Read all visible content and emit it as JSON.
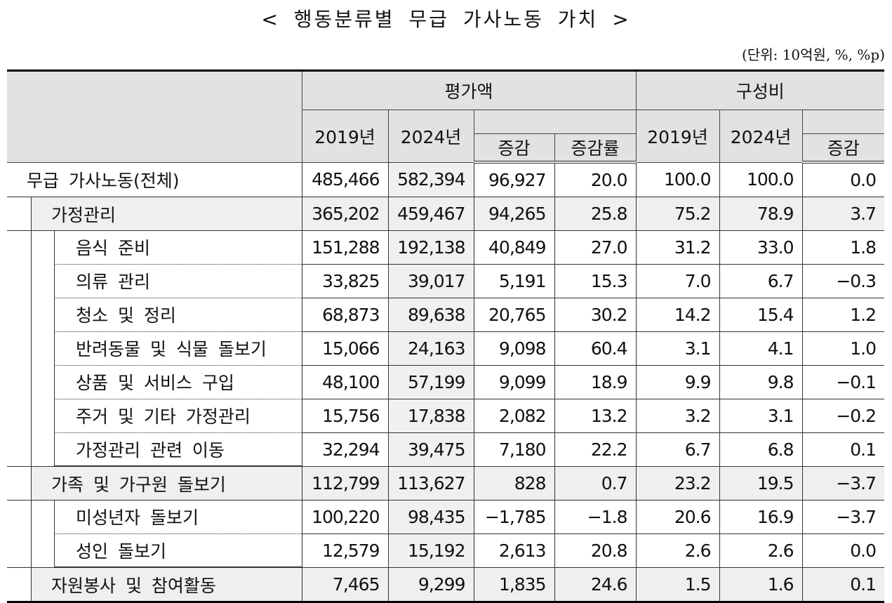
{
  "title": "< 행동분류별 무급 가사노동 가치 >",
  "unit": "(단위: 10억원, %, %p)",
  "headers": {
    "valuation": "평가액",
    "composition": "구성비",
    "y2019": "2019년",
    "y2024": "2024년",
    "change": "증감",
    "change_rate": "증감률"
  },
  "rows": [
    {
      "label": "무급 가사노동(전체)",
      "level": "total",
      "values": [
        "485,466",
        "582,394",
        "96,927",
        "20.0",
        "100.0",
        "100.0",
        "0.0"
      ]
    },
    {
      "label": "가정관리",
      "level": "group",
      "values": [
        "365,202",
        "459,467",
        "94,265",
        "25.8",
        "75.2",
        "78.9",
        "3.7"
      ]
    },
    {
      "label": "음식 준비",
      "level": "leaf",
      "values": [
        "151,288",
        "192,138",
        "40,849",
        "27.0",
        "31.2",
        "33.0",
        "1.8"
      ]
    },
    {
      "label": "의류 관리",
      "level": "leaf",
      "values": [
        "33,825",
        "39,017",
        "5,191",
        "15.3",
        "7.0",
        "6.7",
        "−0.3"
      ]
    },
    {
      "label": "청소 및 정리",
      "level": "leaf",
      "values": [
        "68,873",
        "89,638",
        "20,765",
        "30.2",
        "14.2",
        "15.4",
        "1.2"
      ]
    },
    {
      "label": "반려동물 및 식물 돌보기",
      "level": "leaf",
      "values": [
        "15,066",
        "24,163",
        "9,098",
        "60.4",
        "3.1",
        "4.1",
        "1.0"
      ]
    },
    {
      "label": "상품 및 서비스 구입",
      "level": "leaf",
      "values": [
        "48,100",
        "57,199",
        "9,099",
        "18.9",
        "9.9",
        "9.8",
        "−0.1"
      ]
    },
    {
      "label": "주거 및 기타 가정관리",
      "level": "leaf",
      "values": [
        "15,756",
        "17,838",
        "2,082",
        "13.2",
        "3.2",
        "3.1",
        "−0.2"
      ]
    },
    {
      "label": "가정관리 관련 이동",
      "level": "leaf",
      "values": [
        "32,294",
        "39,475",
        "7,180",
        "22.2",
        "6.7",
        "6.8",
        "0.1"
      ]
    },
    {
      "label": "가족 및 가구원 돌보기",
      "level": "group",
      "values": [
        "112,799",
        "113,627",
        "828",
        "0.7",
        "23.2",
        "19.5",
        "−3.7"
      ]
    },
    {
      "label": "미성년자 돌보기",
      "level": "leaf",
      "values": [
        "100,220",
        "98,435",
        "−1,785",
        "−1.8",
        "20.6",
        "16.9",
        "−3.7"
      ]
    },
    {
      "label": "성인 돌보기",
      "level": "leaf",
      "values": [
        "12,579",
        "15,192",
        "2,613",
        "20.8",
        "2.6",
        "2.6",
        "0.0"
      ]
    },
    {
      "label": "자원봉사 및 참여활동",
      "level": "group",
      "values": [
        "7,465",
        "9,299",
        "1,835",
        "24.6",
        "1.5",
        "1.6",
        "0.1"
      ]
    }
  ]
}
